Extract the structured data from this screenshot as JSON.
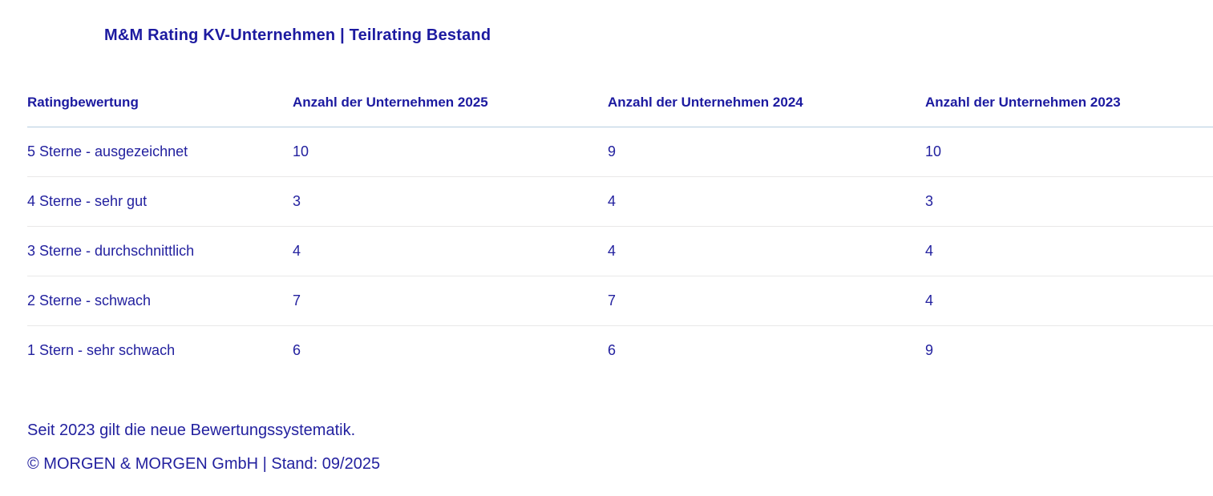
{
  "title": "M&M Rating KV-Unternehmen | Teilrating Bestand",
  "colors": {
    "text_blue": "#23219f",
    "heading_blue": "#1c1aa0",
    "header_divider": "#b5cde0",
    "row_divider": "#e9e8e8",
    "background": "#ffffff"
  },
  "chart_data": {
    "type": "table",
    "title": "M&M Rating KV-Unternehmen | Teilrating Bestand",
    "columns": [
      "Ratingbewertung",
      "Anzahl der Unternehmen 2025",
      "Anzahl der Unternehmen 2024",
      "Anzahl der Unternehmen 2023"
    ],
    "rows": [
      [
        "5 Sterne - ausgezeichnet",
        "10",
        "9",
        "10"
      ],
      [
        "4 Sterne - sehr gut",
        "3",
        "4",
        "3"
      ],
      [
        "3 Sterne - durchschnittlich",
        "4",
        "4",
        "4"
      ],
      [
        "2 Sterne - schwach",
        "7",
        "7",
        "4"
      ],
      [
        "1 Stern - sehr schwach",
        "6",
        "6",
        "9"
      ]
    ]
  },
  "footer": {
    "note": "Seit 2023 gilt die neue Bewertungssystematik.",
    "copyright": "© MORGEN & MORGEN GmbH | Stand: 09/2025"
  }
}
